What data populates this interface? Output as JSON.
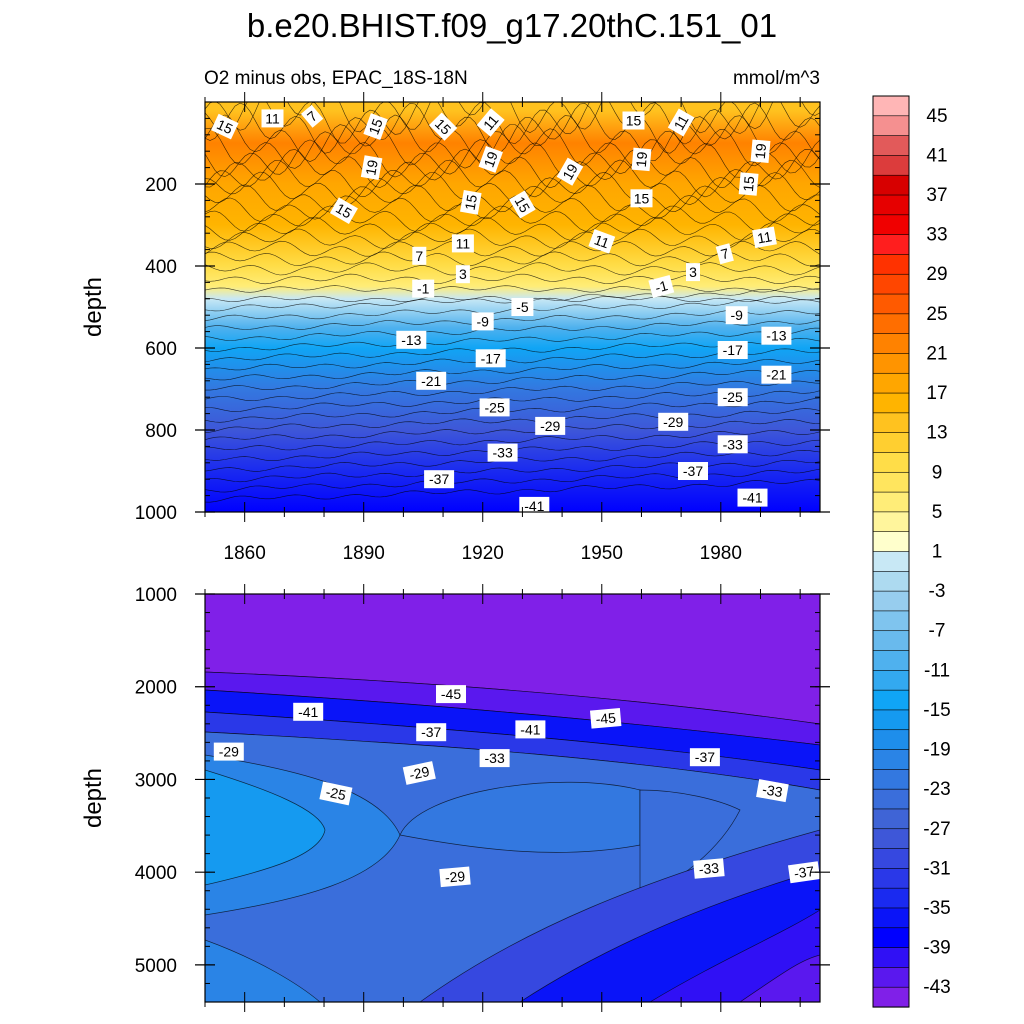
{
  "chart_data": {
    "type": "heatmap",
    "title": "b.e20.BHIST.f09_g17.20thC.151_01",
    "subtitle_left": "O2 minus obs, EPAC_18S-18N",
    "units": "mmol/m^3",
    "xlabel": "",
    "ylabel": "depth",
    "x_range": [
      1850,
      2005
    ],
    "x_ticks": [
      {
        "value": 1860,
        "label": "1860"
      },
      {
        "value": 1890,
        "label": "1890"
      },
      {
        "value": 1920,
        "label": "1920"
      },
      {
        "value": 1950,
        "label": "1950"
      },
      {
        "value": 1980,
        "label": "1980"
      }
    ],
    "panels": [
      {
        "name": "upper",
        "ylim": [
          0,
          1000
        ],
        "y_ticks": [
          {
            "value": 200,
            "label": "200"
          },
          {
            "value": 400,
            "label": "400"
          },
          {
            "value": 600,
            "label": "600"
          },
          {
            "value": 800,
            "label": "800"
          },
          {
            "value": 1000,
            "label": "1000"
          }
        ],
        "depth_profile": [
          {
            "depth": 20,
            "value": 12
          },
          {
            "depth": 100,
            "value": 19
          },
          {
            "depth": 200,
            "value": 16
          },
          {
            "depth": 300,
            "value": 13
          },
          {
            "depth": 400,
            "value": 8
          },
          {
            "depth": 450,
            "value": 3
          },
          {
            "depth": 480,
            "value": -2
          },
          {
            "depth": 550,
            "value": -12
          },
          {
            "depth": 600,
            "value": -16
          },
          {
            "depth": 700,
            "value": -24
          },
          {
            "depth": 800,
            "value": -31
          },
          {
            "depth": 900,
            "value": -37
          },
          {
            "depth": 1000,
            "value": -41
          }
        ],
        "contour_labels": [
          {
            "text": "15",
            "year": 1855,
            "depth": 60,
            "rot": 25
          },
          {
            "text": "11",
            "year": 1867,
            "depth": 40,
            "rot": 0
          },
          {
            "text": "7",
            "year": 1877,
            "depth": 35,
            "rot": -40
          },
          {
            "text": "15",
            "year": 1893,
            "depth": 60,
            "rot": -70
          },
          {
            "text": "15",
            "year": 1910,
            "depth": 60,
            "rot": 45
          },
          {
            "text": "11",
            "year": 1922,
            "depth": 50,
            "rot": -50
          },
          {
            "text": "15",
            "year": 1958,
            "depth": 45,
            "rot": 0
          },
          {
            "text": "11",
            "year": 1970,
            "depth": 50,
            "rot": -60
          },
          {
            "text": "19",
            "year": 1990,
            "depth": 120,
            "rot": -85
          },
          {
            "text": "19",
            "year": 1892,
            "depth": 160,
            "rot": -80
          },
          {
            "text": "19",
            "year": 1922,
            "depth": 140,
            "rot": -70
          },
          {
            "text": "19",
            "year": 1942,
            "depth": 170,
            "rot": -60
          },
          {
            "text": "19",
            "year": 1960,
            "depth": 140,
            "rot": -85
          },
          {
            "text": "15",
            "year": 1987,
            "depth": 200,
            "rot": -85
          },
          {
            "text": "15",
            "year": 1885,
            "depth": 265,
            "rot": 30
          },
          {
            "text": "15",
            "year": 1917,
            "depth": 245,
            "rot": -80
          },
          {
            "text": "15",
            "year": 1930,
            "depth": 250,
            "rot": 60
          },
          {
            "text": "15",
            "year": 1960,
            "depth": 235,
            "rot": 0
          },
          {
            "text": "11",
            "year": 1915,
            "depth": 345,
            "rot": 0
          },
          {
            "text": "11",
            "year": 1950,
            "depth": 340,
            "rot": 20
          },
          {
            "text": "11",
            "year": 1991,
            "depth": 330,
            "rot": -10
          },
          {
            "text": "7",
            "year": 1904,
            "depth": 375,
            "rot": 0
          },
          {
            "text": "7",
            "year": 1981,
            "depth": 370,
            "rot": -15
          },
          {
            "text": "3",
            "year": 1915,
            "depth": 420,
            "rot": 0
          },
          {
            "text": "3",
            "year": 1973,
            "depth": 415,
            "rot": 0
          },
          {
            "text": "-1",
            "year": 1905,
            "depth": 455,
            "rot": 0
          },
          {
            "text": "-1",
            "year": 1965,
            "depth": 450,
            "rot": -15
          },
          {
            "text": "-5",
            "year": 1930,
            "depth": 500,
            "rot": 0
          },
          {
            "text": "-9",
            "year": 1920,
            "depth": 535,
            "rot": 0
          },
          {
            "text": "-9",
            "year": 1984,
            "depth": 520,
            "rot": 0
          },
          {
            "text": "-13",
            "year": 1902,
            "depth": 580,
            "rot": 0
          },
          {
            "text": "-13",
            "year": 1994,
            "depth": 570,
            "rot": 0
          },
          {
            "text": "-17",
            "year": 1922,
            "depth": 625,
            "rot": 0
          },
          {
            "text": "-17",
            "year": 1983,
            "depth": 605,
            "rot": 0
          },
          {
            "text": "-21",
            "year": 1907,
            "depth": 680,
            "rot": 0
          },
          {
            "text": "-21",
            "year": 1994,
            "depth": 665,
            "rot": 0
          },
          {
            "text": "-25",
            "year": 1923,
            "depth": 745,
            "rot": 0
          },
          {
            "text": "-25",
            "year": 1983,
            "depth": 720,
            "rot": 0
          },
          {
            "text": "-29",
            "year": 1937,
            "depth": 790,
            "rot": 0
          },
          {
            "text": "-29",
            "year": 1968,
            "depth": 780,
            "rot": 0
          },
          {
            "text": "-33",
            "year": 1925,
            "depth": 855,
            "rot": 0
          },
          {
            "text": "-33",
            "year": 1983,
            "depth": 835,
            "rot": 0
          },
          {
            "text": "-37",
            "year": 1909,
            "depth": 920,
            "rot": 0
          },
          {
            "text": "-37",
            "year": 1973,
            "depth": 900,
            "rot": 0
          },
          {
            "text": "-41",
            "year": 1933,
            "depth": 985,
            "rot": 0
          },
          {
            "text": "-41",
            "year": 1988,
            "depth": 965,
            "rot": 0
          }
        ]
      },
      {
        "name": "lower",
        "ylim": [
          1000,
          5400
        ],
        "y_ticks": [
          {
            "value": 1000,
            "label": "1000"
          },
          {
            "value": 2000,
            "label": "2000"
          },
          {
            "value": 3000,
            "label": "3000"
          },
          {
            "value": 4000,
            "label": "4000"
          },
          {
            "value": 5000,
            "label": "5000"
          }
        ],
        "contour_labels": [
          {
            "text": "-45",
            "year": 1912,
            "depth": 2080,
            "rot": 0
          },
          {
            "text": "-41",
            "year": 1876,
            "depth": 2270,
            "rot": 0
          },
          {
            "text": "-37",
            "year": 1907,
            "depth": 2490,
            "rot": 0
          },
          {
            "text": "-29",
            "year": 1856,
            "depth": 2700,
            "rot": 0
          },
          {
            "text": "-33",
            "year": 1923,
            "depth": 2770,
            "rot": 0
          },
          {
            "text": "-29",
            "year": 1904,
            "depth": 2930,
            "rot": -12
          },
          {
            "text": "-25",
            "year": 1883,
            "depth": 3150,
            "rot": 12
          },
          {
            "text": "-41",
            "year": 1932,
            "depth": 2460,
            "rot": 0
          },
          {
            "text": "-45",
            "year": 1951,
            "depth": 2340,
            "rot": -5
          },
          {
            "text": "-37",
            "year": 1976,
            "depth": 2760,
            "rot": 0
          },
          {
            "text": "-33",
            "year": 1993,
            "depth": 3120,
            "rot": 10
          },
          {
            "text": "-29",
            "year": 1913,
            "depth": 4050,
            "rot": -5
          },
          {
            "text": "-33",
            "year": 1977,
            "depth": 3960,
            "rot": -5
          },
          {
            "text": "-37",
            "year": 2001,
            "depth": 4000,
            "rot": -8
          }
        ]
      }
    ],
    "colorbar": {
      "levels": [
        45,
        43,
        41,
        39,
        37,
        35,
        33,
        31,
        29,
        27,
        25,
        23,
        21,
        19,
        17,
        15,
        13,
        11,
        9,
        7,
        5,
        3,
        1,
        -1,
        -3,
        -5,
        -7,
        -9,
        -11,
        -13,
        -15,
        -17,
        -19,
        -21,
        -23,
        -25,
        -27,
        -29,
        -31,
        -33,
        -35,
        -37,
        -39,
        -41,
        -43,
        -45
      ],
      "labels": [
        "45",
        "41",
        "37",
        "33",
        "29",
        "25",
        "21",
        "17",
        "13",
        "9",
        "5",
        "1",
        "-3",
        "-7",
        "-11",
        "-15",
        "-19",
        "-23",
        "-27",
        "-31",
        "-35",
        "-39",
        "-43"
      ],
      "colors": [
        "#FFB6B6",
        "#F59090",
        "#E25A5A",
        "#DC3C3C",
        "#D70000",
        "#E60000",
        "#F00000",
        "#FF1E1E",
        "#FF3200",
        "#FF4600",
        "#FF5A00",
        "#FF6E00",
        "#FF8200",
        "#FF9400",
        "#FFA600",
        "#FFB400",
        "#FFC21F",
        "#FFCF30",
        "#FFDD48",
        "#FFE55E",
        "#FFED78",
        "#FFF59C",
        "#FFFFCC",
        "#C8E8F5",
        "#ADDAF0",
        "#97CDEE",
        "#7FC4EE",
        "#69BAED",
        "#4FB1EE",
        "#33A9F0",
        "#10A5F5",
        "#159AF0",
        "#1E8EEB",
        "#2A84E6",
        "#3378E0",
        "#3A6EDB",
        "#3F64D6",
        "#3E57D8",
        "#3648E0",
        "#2A38E8",
        "#1A2AF0",
        "#0A14F8",
        "#0000FF",
        "#3010F5",
        "#5A18EE",
        "#8020E8"
      ]
    }
  }
}
